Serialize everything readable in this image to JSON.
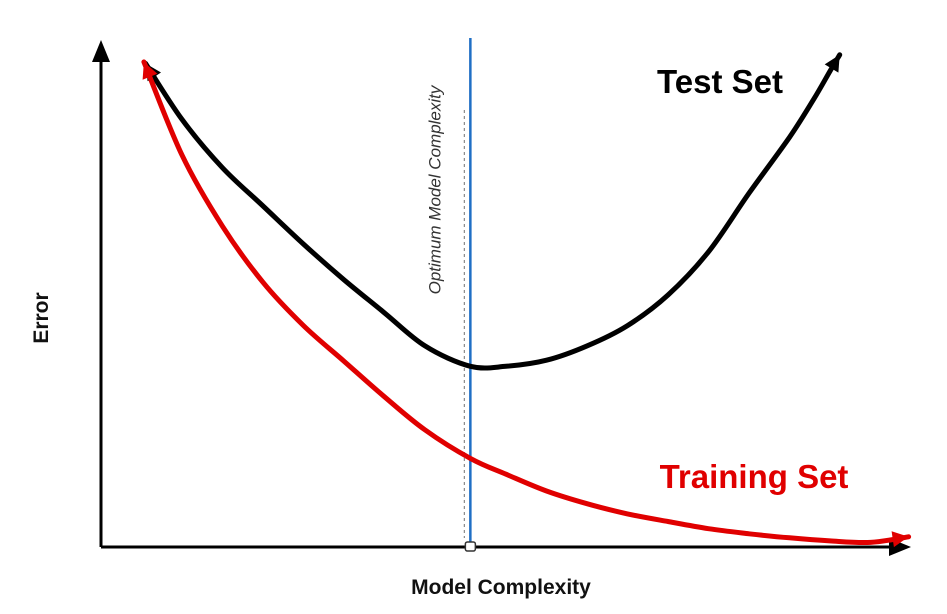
{
  "chart_data": {
    "type": "line",
    "title": "",
    "xlabel": "Model Complexity",
    "ylabel": "Error",
    "xlim": [
      0,
      100
    ],
    "ylim": [
      0,
      100
    ],
    "grid": false,
    "ticks": false,
    "series": [
      {
        "name": "Test Set",
        "color": "#000000",
        "x": [
          5.5,
          10,
          15,
          20,
          25,
          30,
          35,
          40,
          45.6,
          50,
          55,
          60,
          65,
          70,
          75,
          80,
          85,
          88,
          90,
          91.2
        ],
        "y": [
          95,
          84,
          74.5,
          67,
          59.5,
          52.5,
          46,
          39.5,
          35.5,
          35.5,
          36.7,
          39.5,
          43.5,
          49.5,
          58,
          69.5,
          80.5,
          88,
          93.5,
          96.7
        ]
      },
      {
        "name": "Training Set",
        "color": "#e00000",
        "x": [
          5.3,
          10,
          15,
          20,
          25,
          30,
          35,
          40,
          45.6,
          50,
          55,
          60,
          65,
          70,
          75,
          80,
          85,
          90,
          95,
          99.7
        ],
        "y": [
          95.3,
          77,
          63,
          52,
          43.5,
          36.5,
          29.5,
          23,
          17.4,
          14.3,
          11,
          8.5,
          6.5,
          5,
          3.6,
          2.6,
          1.8,
          1.2,
          0.9,
          2
        ]
      }
    ],
    "annotations": [
      {
        "text": "Optimum Model Complexity",
        "x": 45.6,
        "orientation": "vertical",
        "line_color": "#1f6fc5"
      }
    ]
  },
  "labels": {
    "xlabel": "Model Complexity",
    "ylabel": "Error",
    "test_set": "Test Set",
    "training_set": "Training Set",
    "optimum": "Optimum Model Complexity"
  },
  "colors": {
    "test_set": "#000000",
    "training_set": "#e00000",
    "optimum_line": "#1f6fc5",
    "axes": "#000000"
  }
}
